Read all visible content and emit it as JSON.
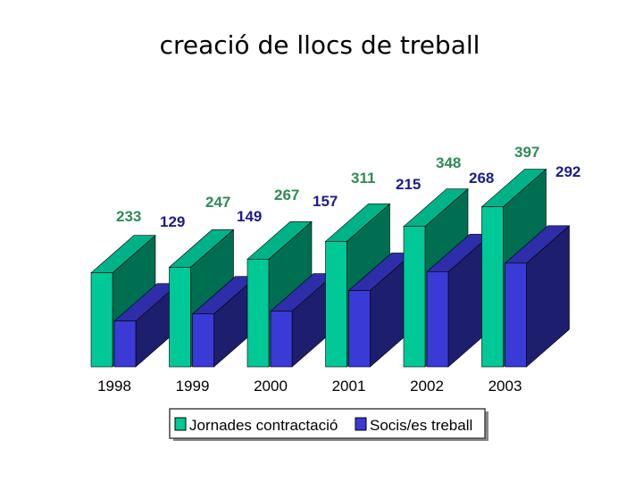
{
  "chart_data": {
    "type": "bar",
    "title": "creació de llocs de treball",
    "categories": [
      "1998",
      "1999",
      "2000",
      "2001",
      "2002",
      "2003"
    ],
    "series": [
      {
        "name": "Jornades contractació",
        "values": [
          233,
          247,
          267,
          311,
          348,
          397
        ]
      },
      {
        "name": "Socis/es treball",
        "values": [
          129,
          149,
          157,
          215,
          268,
          292
        ]
      }
    ],
    "ylim": [
      0,
      450
    ],
    "legend": "bottom",
    "colors": {
      "s0_front": "#00c896",
      "s0_side": "#006e50",
      "s0_top": "#00b287",
      "s1_front": "#3a3ad6",
      "s1_side": "#1e1e6e",
      "s1_top": "#2e2eaa",
      "s0_label": "#2e8b57",
      "s1_label": "#1c1c8c"
    }
  }
}
